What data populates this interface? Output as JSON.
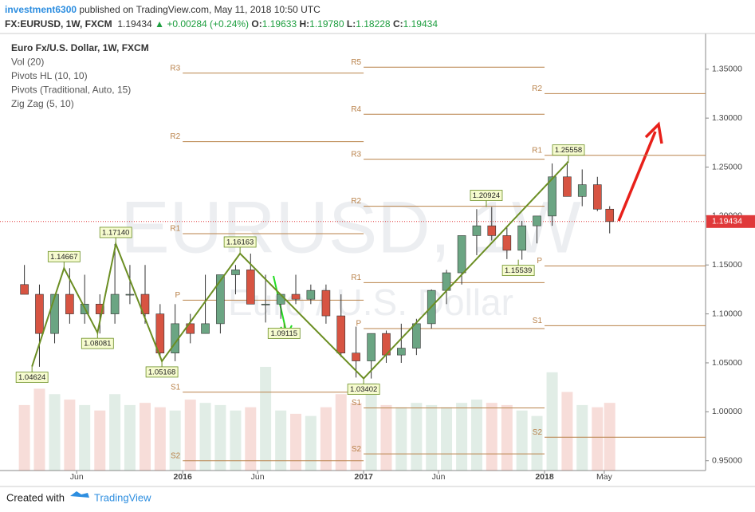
{
  "chart_data": {
    "type": "candlestick",
    "header": {
      "user": "investment6300",
      "published": "published on TradingView.com, May 11, 2018 10:50 UTC",
      "symbol": "FX:EURUSD, 1W, FXCM",
      "last": "1.19434",
      "change": "+0.00284 (+0.24%)",
      "ohlc": [
        {
          "label": "O:",
          "value": "1.19633"
        },
        {
          "label": "H:",
          "value": "1.19780"
        },
        {
          "label": "L:",
          "value": "1.18228"
        },
        {
          "label": "C:",
          "value": "1.19434"
        }
      ]
    },
    "indicators": [
      "Euro Fx/U.S. Dollar, 1W, FXCM",
      "Vol (20)",
      "Pivots HL (10, 10)",
      "Pivots (Traditional, Auto, 15)",
      "Zig Zag (5, 10)"
    ],
    "watermark": "EURUSD, 1W",
    "watermark_sub": "Euro / U.S. Dollar",
    "footer": {
      "created": "Created with",
      "brand": "TradingView"
    },
    "up_color": "#6ba583",
    "down_color": "#d75442",
    "pivot_color": "#b9824a",
    "zigzag_color": "#6b8e23",
    "last_color": "#e0393a",
    "xlim": [
      2014.99,
      2018.89
    ],
    "ylim": [
      0.94,
      1.384
    ],
    "xticks": [
      {
        "value": 2015.414,
        "label": "Jun"
      },
      {
        "value": 2016,
        "label": "2016"
      },
      {
        "value": 2016.414,
        "label": "Jun"
      },
      {
        "value": 2017,
        "label": "2017"
      },
      {
        "value": 2017.414,
        "label": "Jun"
      },
      {
        "value": 2018,
        "label": "2018"
      },
      {
        "value": 2018.33,
        "label": "May"
      }
    ],
    "yticks": [
      {
        "value": 0.95,
        "label": "0.95000"
      },
      {
        "value": 1.0,
        "label": "1.00000"
      },
      {
        "value": 1.05,
        "label": "1.05000"
      },
      {
        "value": 1.1,
        "label": "1.10000"
      },
      {
        "value": 1.15,
        "label": "1.15000"
      },
      {
        "value": 1.2,
        "label": "1.20000"
      },
      {
        "value": 1.25,
        "label": "1.25000"
      },
      {
        "value": 1.3,
        "label": "1.30000"
      },
      {
        "value": 1.35,
        "label": "1.35000"
      }
    ],
    "candles": {
      "x": [
        2015.125,
        2015.208,
        2015.292,
        2015.375,
        2015.458,
        2015.542,
        2015.625,
        2015.708,
        2015.792,
        2015.875,
        2015.958,
        2016.042,
        2016.125,
        2016.208,
        2016.292,
        2016.375,
        2016.458,
        2016.542,
        2016.625,
        2016.708,
        2016.792,
        2016.875,
        2016.958,
        2017.042,
        2017.125,
        2017.208,
        2017.292,
        2017.375,
        2017.458,
        2017.542,
        2017.625,
        2017.708,
        2017.792,
        2017.875,
        2017.958,
        2018.042,
        2018.125,
        2018.208,
        2018.292,
        2018.36
      ],
      "open": [
        1.13,
        1.12,
        1.08,
        1.12,
        1.1,
        1.11,
        1.1,
        1.12,
        1.12,
        1.1,
        1.06,
        1.09,
        1.08,
        1.09,
        1.14,
        1.145,
        1.11,
        1.11,
        1.12,
        1.115,
        1.124,
        1.098,
        1.06,
        1.052,
        1.08,
        1.058,
        1.065,
        1.09,
        1.124,
        1.142,
        1.18,
        1.19,
        1.18,
        1.165,
        1.19,
        1.2,
        1.24,
        1.22,
        1.232,
        1.207
      ],
      "high": [
        1.15,
        1.13,
        1.12,
        1.1467,
        1.14,
        1.12,
        1.1714,
        1.15,
        1.15,
        1.11,
        1.11,
        1.1,
        1.14,
        1.14,
        1.15,
        1.1616,
        1.14,
        1.12,
        1.14,
        1.13,
        1.13,
        1.12,
        1.087,
        1.08,
        1.083,
        1.09,
        1.095,
        1.125,
        1.145,
        1.18,
        1.207,
        1.2092,
        1.188,
        1.195,
        1.2,
        1.2537,
        1.2556,
        1.2476,
        1.24,
        1.21
      ],
      "low": [
        1.12,
        1.046,
        1.07,
        1.09,
        1.09,
        1.08,
        1.09,
        1.11,
        1.09,
        1.056,
        1.0517,
        1.07,
        1.08,
        1.08,
        1.12,
        1.11,
        1.0912,
        1.095,
        1.11,
        1.11,
        1.09,
        1.056,
        1.035,
        1.034,
        1.05,
        1.05,
        1.058,
        1.085,
        1.11,
        1.13,
        1.16,
        1.175,
        1.156,
        1.1554,
        1.172,
        1.19,
        1.22,
        1.21,
        1.205,
        1.1823
      ],
      "close": [
        1.12,
        1.08,
        1.12,
        1.1,
        1.11,
        1.1,
        1.12,
        1.12,
        1.1,
        1.06,
        1.09,
        1.08,
        1.09,
        1.14,
        1.145,
        1.11,
        1.11,
        1.12,
        1.115,
        1.124,
        1.098,
        1.06,
        1.052,
        1.08,
        1.058,
        1.065,
        1.09,
        1.124,
        1.142,
        1.18,
        1.19,
        1.18,
        1.165,
        1.19,
        1.2,
        1.24,
        1.22,
        1.232,
        1.207,
        1.1943
      ],
      "volume": [
        60,
        75,
        70,
        65,
        60,
        55,
        70,
        60,
        62,
        58,
        55,
        65,
        62,
        60,
        55,
        58,
        95,
        55,
        52,
        50,
        58,
        70,
        62,
        80,
        60,
        58,
        62,
        60,
        58,
        62,
        65,
        62,
        60,
        55,
        50,
        90,
        72,
        60,
        58,
        62
      ]
    },
    "last_price": 1.19434,
    "pivots": [
      {
        "label": "R3",
        "value": 1.346,
        "x": [
          2016,
          2017
        ]
      },
      {
        "label": "R2",
        "value": 1.276,
        "x": [
          2016,
          2017
        ]
      },
      {
        "label": "R1",
        "value": 1.182,
        "x": [
          2016,
          2017
        ]
      },
      {
        "label": "P",
        "value": 1.114,
        "x": [
          2016,
          2017
        ]
      },
      {
        "label": "S1",
        "value": 1.02,
        "x": [
          2016,
          2017
        ]
      },
      {
        "label": "S2",
        "value": 0.95,
        "x": [
          2016,
          2017
        ]
      },
      {
        "label": "R5",
        "value": 1.352,
        "x": [
          2017,
          2018
        ]
      },
      {
        "label": "R4",
        "value": 1.304,
        "x": [
          2017,
          2018
        ]
      },
      {
        "label": "R3",
        "value": 1.258,
        "x": [
          2017,
          2018
        ]
      },
      {
        "label": "R2",
        "value": 1.21,
        "x": [
          2017,
          2018
        ]
      },
      {
        "label": "R1",
        "value": 1.132,
        "x": [
          2017,
          2018
        ]
      },
      {
        "label": "P",
        "value": 1.085,
        "x": [
          2017,
          2018
        ]
      },
      {
        "label": "S1",
        "value": 1.004,
        "x": [
          2017,
          2018
        ]
      },
      {
        "label": "S2",
        "value": 0.957,
        "x": [
          2017,
          2018
        ]
      },
      {
        "label": "R2",
        "value": 1.325,
        "x": [
          2018,
          2018.89
        ]
      },
      {
        "label": "R1",
        "value": 1.262,
        "x": [
          2018,
          2018.89
        ]
      },
      {
        "label": "P",
        "value": 1.149,
        "x": [
          2018,
          2018.89
        ]
      },
      {
        "label": "S1",
        "value": 1.088,
        "x": [
          2018,
          2018.89
        ]
      },
      {
        "label": "S2",
        "value": 0.974,
        "x": [
          2018,
          2018.89
        ]
      }
    ],
    "zigzag": {
      "x": [
        2015.167,
        2015.344,
        2015.529,
        2015.63,
        2015.885,
        2016.317,
        2017.0,
        2018.132
      ],
      "values": [
        1.04624,
        1.14667,
        1.08081,
        1.1714,
        1.05168,
        1.16163,
        1.03402,
        1.25558
      ]
    },
    "hl_labels": [
      {
        "x": 2015.167,
        "value": 1.04624,
        "side": "low"
      },
      {
        "x": 2015.344,
        "value": 1.14667,
        "side": "high"
      },
      {
        "x": 2015.529,
        "value": 1.08081,
        "side": "low"
      },
      {
        "x": 2015.63,
        "value": {
          "value": 1.1714,
          "label": "1.17140"
        },
        "side": "high"
      },
      {
        "x": 2015.885,
        "value": 1.05168,
        "side": "low"
      },
      {
        "x": 2016.317,
        "value": 1.16163,
        "side": "high"
      },
      {
        "x": 2016.56,
        "value": 1.09115,
        "side": "low"
      },
      {
        "x": 2017.0,
        "value": 1.03402,
        "side": "low"
      },
      {
        "x": 2017.678,
        "value": 1.20924,
        "side": "high"
      },
      {
        "x": 2017.855,
        "value": 1.15539,
        "side": "low"
      },
      {
        "x": 2018.132,
        "value": 1.25558,
        "side": "high"
      }
    ]
  }
}
